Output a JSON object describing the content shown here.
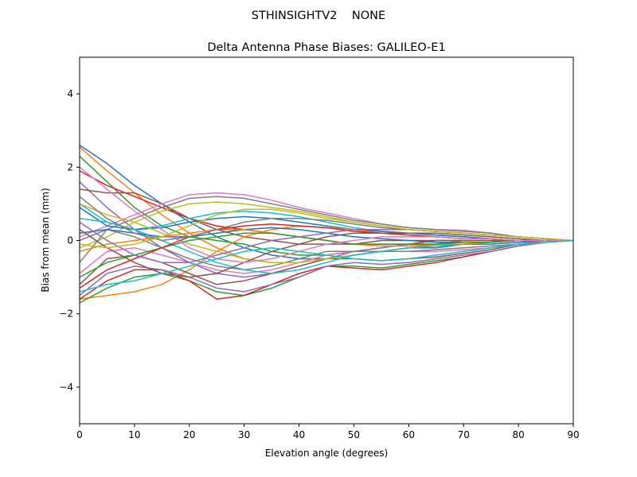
{
  "suptitle": "STHINSIGHTV2    NONE",
  "chart_data": {
    "type": "line",
    "title": "Delta Antenna Phase Biases: GALILEO-E1",
    "xlabel": "Elevation angle (degrees)",
    "ylabel": "Bias from mean (mm)",
    "xlim": [
      0,
      90
    ],
    "ylim": [
      -5,
      5
    ],
    "xticks": [
      "0",
      "10",
      "20",
      "30",
      "40",
      "50",
      "60",
      "70",
      "80",
      "90"
    ],
    "yticks": [
      "−4",
      "−2",
      "0",
      "2",
      "4"
    ],
    "grid": false,
    "legend": "none",
    "colors": [
      "#1f77b4",
      "#ff7f0e",
      "#2ca02c",
      "#d62728",
      "#9467bd",
      "#8c564b",
      "#e377c2",
      "#7f7f7f",
      "#bcbd22",
      "#17becf"
    ],
    "x": [
      0,
      5,
      10,
      15,
      20,
      25,
      30,
      35,
      40,
      45,
      50,
      55,
      60,
      65,
      70,
      75,
      80,
      85,
      90
    ],
    "series": [
      {
        "values": [
          2.6,
          2.1,
          1.5,
          1.0,
          0.5,
          0.1,
          -0.2,
          -0.4,
          -0.5,
          -0.5,
          -0.4,
          -0.3,
          -0.2,
          -0.2,
          -0.1,
          -0.1,
          -0.05,
          0,
          0
        ]
      },
      {
        "values": [
          2.55,
          1.9,
          1.3,
          0.7,
          0.2,
          -0.2,
          -0.5,
          -0.6,
          -0.6,
          -0.5,
          -0.4,
          -0.3,
          -0.2,
          -0.1,
          -0.1,
          -0.05,
          0,
          0,
          0
        ]
      },
      {
        "values": [
          2.3,
          1.6,
          0.9,
          0.4,
          0.1,
          0.0,
          -0.1,
          -0.3,
          -0.4,
          -0.4,
          -0.3,
          -0.2,
          -0.1,
          -0.1,
          0,
          0,
          0,
          0,
          0
        ]
      },
      {
        "values": [
          1.9,
          1.5,
          1.2,
          0.9,
          0.6,
          0.4,
          0.3,
          0.2,
          0.1,
          0,
          -0.1,
          -0.1,
          -0.1,
          0,
          0,
          0,
          0,
          0,
          0
        ]
      },
      {
        "values": [
          1.6,
          0.9,
          0.3,
          -0.2,
          -0.6,
          -0.9,
          -1.0,
          -0.9,
          -0.7,
          -0.5,
          -0.3,
          -0.2,
          -0.1,
          -0.1,
          0,
          0,
          0,
          0,
          0
        ]
      },
      {
        "values": [
          1.4,
          1.3,
          1.3,
          1.0,
          0.6,
          0.3,
          0.1,
          0,
          -0.1,
          -0.1,
          -0.1,
          0,
          0,
          0,
          0,
          0,
          0,
          0,
          0
        ]
      },
      {
        "values": [
          0.1,
          0.4,
          0.7,
          1.0,
          1.25,
          1.3,
          1.25,
          1.1,
          0.9,
          0.75,
          0.6,
          0.45,
          0.35,
          0.3,
          0.28,
          0.2,
          0.1,
          0.05,
          0
        ]
      },
      {
        "values": [
          0.0,
          0.3,
          0.6,
          0.9,
          1.15,
          1.2,
          1.15,
          1.0,
          0.85,
          0.7,
          0.55,
          0.45,
          0.35,
          0.3,
          0.25,
          0.2,
          0.1,
          0.05,
          0
        ]
      },
      {
        "values": [
          -0.2,
          0.1,
          0.5,
          0.8,
          1.0,
          1.05,
          1.0,
          0.9,
          0.8,
          0.65,
          0.5,
          0.4,
          0.3,
          0.25,
          0.2,
          0.15,
          0.1,
          0.05,
          0
        ]
      },
      {
        "values": [
          1.0,
          0.5,
          0.3,
          0.4,
          0.6,
          0.75,
          0.8,
          0.75,
          0.65,
          0.5,
          0.35,
          0.25,
          0.2,
          0.15,
          0.1,
          0.05,
          0,
          0,
          0
        ]
      },
      {
        "values": [
          0.9,
          0.4,
          0.3,
          0.35,
          0.5,
          0.6,
          0.65,
          0.6,
          0.5,
          0.4,
          0.3,
          0.25,
          0.2,
          0.15,
          0.1,
          0.05,
          0,
          0,
          0
        ]
      },
      {
        "values": [
          -1.6,
          -1.5,
          -1.4,
          -1.2,
          -0.8,
          -0.3,
          0.1,
          0.3,
          0.4,
          0.35,
          0.3,
          0.2,
          0.15,
          0.1,
          0.05,
          0.05,
          0,
          0,
          0
        ]
      },
      {
        "values": [
          -1.7,
          -1.3,
          -1.0,
          -0.9,
          -1.1,
          -1.4,
          -1.5,
          -1.3,
          -1.0,
          -0.7,
          -0.7,
          -0.75,
          -0.65,
          -0.55,
          -0.45,
          -0.3,
          -0.15,
          -0.05,
          0
        ]
      },
      {
        "values": [
          -1.6,
          -1.1,
          -0.8,
          -0.8,
          -1.1,
          -1.6,
          -1.5,
          -1.2,
          -0.9,
          -0.7,
          -0.75,
          -0.8,
          -0.7,
          -0.6,
          -0.45,
          -0.3,
          -0.15,
          -0.05,
          0
        ]
      },
      {
        "values": [
          -1.5,
          -0.9,
          -0.7,
          -0.8,
          -1.0,
          -1.3,
          -1.4,
          -1.2,
          -1.0,
          -0.7,
          -0.6,
          -0.65,
          -0.6,
          -0.5,
          -0.4,
          -0.3,
          -0.15,
          -0.05,
          0
        ]
      },
      {
        "values": [
          -1.2,
          -0.5,
          -0.4,
          -0.6,
          -0.9,
          -1.2,
          -1.1,
          -0.9,
          -0.7,
          -0.5,
          -0.5,
          -0.55,
          -0.5,
          -0.45,
          -0.35,
          -0.25,
          -0.1,
          -0.05,
          0
        ]
      },
      {
        "values": [
          -0.9,
          -0.3,
          -0.2,
          -0.4,
          -0.6,
          -0.8,
          -0.9,
          -0.8,
          -0.6,
          -0.4,
          -0.3,
          -0.3,
          -0.3,
          -0.3,
          -0.25,
          -0.2,
          -0.1,
          -0.05,
          0
        ]
      },
      {
        "values": [
          -0.6,
          0.3,
          0.1,
          -0.2,
          -0.5,
          -0.7,
          -0.8,
          -0.7,
          -0.5,
          -0.3,
          -0.3,
          -0.3,
          -0.3,
          -0.25,
          -0.2,
          -0.15,
          -0.1,
          0,
          0
        ]
      },
      {
        "values": [
          1.0,
          0.7,
          0.5,
          0.2,
          -0.1,
          -0.3,
          -0.5,
          -0.6,
          -0.6,
          -0.5,
          -0.4,
          -0.3,
          -0.2,
          -0.15,
          -0.1,
          -0.05,
          0,
          0,
          0
        ]
      },
      {
        "values": [
          0.6,
          0.5,
          0.3,
          0.0,
          -0.3,
          -0.6,
          -0.8,
          -0.9,
          -0.8,
          -0.6,
          -0.4,
          -0.3,
          -0.2,
          -0.15,
          -0.1,
          -0.05,
          0,
          0,
          0
        ]
      },
      {
        "values": [
          0.2,
          0.3,
          0.2,
          0.1,
          0.1,
          0.2,
          0.3,
          0.35,
          0.3,
          0.2,
          0.1,
          0.05,
          0.0,
          -0.05,
          -0.05,
          -0.05,
          0,
          0,
          0
        ]
      },
      {
        "values": [
          -0.3,
          -0.1,
          0.0,
          0.1,
          0.2,
          0.3,
          0.3,
          0.2,
          0.1,
          0.0,
          -0.1,
          -0.15,
          -0.15,
          -0.1,
          -0.1,
          -0.05,
          0,
          0,
          0
        ]
      },
      {
        "values": [
          -1.0,
          -0.6,
          -0.4,
          -0.2,
          0.0,
          0.1,
          0.2,
          0.2,
          0.1,
          0.0,
          -0.1,
          -0.1,
          -0.1,
          -0.1,
          -0.05,
          -0.05,
          0,
          0,
          0
        ]
      },
      {
        "values": [
          -1.3,
          -0.8,
          -0.5,
          -0.2,
          0.1,
          0.3,
          0.4,
          0.45,
          0.4,
          0.35,
          0.25,
          0.2,
          0.15,
          0.1,
          0.05,
          0.05,
          0,
          0,
          0
        ]
      },
      {
        "values": [
          0.5,
          0.0,
          -0.4,
          -0.6,
          -0.6,
          -0.4,
          -0.2,
          0.0,
          0.1,
          0.2,
          0.3,
          0.3,
          0.3,
          0.25,
          0.2,
          0.15,
          0.1,
          0.05,
          0
        ]
      },
      {
        "values": [
          0.3,
          -0.2,
          -0.6,
          -0.9,
          -1.0,
          -0.9,
          -0.6,
          -0.3,
          -0.1,
          0.1,
          0.2,
          0.2,
          0.2,
          0.2,
          0.15,
          0.1,
          0.05,
          0,
          0
        ]
      },
      {
        "values": [
          2.0,
          1.4,
          0.8,
          0.3,
          -0.2,
          -0.5,
          -0.6,
          -0.5,
          -0.3,
          -0.1,
          0.0,
          0.1,
          0.1,
          0.1,
          0.05,
          0.05,
          0,
          0,
          0
        ]
      },
      {
        "values": [
          1.2,
          0.6,
          0.2,
          0.0,
          0.1,
          0.3,
          0.5,
          0.6,
          0.6,
          0.55,
          0.45,
          0.35,
          0.3,
          0.25,
          0.2,
          0.15,
          0.1,
          0.05,
          0
        ]
      },
      {
        "values": [
          -0.1,
          -0.2,
          -0.1,
          0.1,
          0.4,
          0.7,
          0.85,
          0.85,
          0.75,
          0.6,
          0.5,
          0.4,
          0.3,
          0.25,
          0.2,
          0.15,
          0.1,
          0.05,
          0
        ]
      },
      {
        "values": [
          -1.4,
          -1.2,
          -1.1,
          -0.9,
          -0.7,
          -0.5,
          -0.3,
          -0.2,
          -0.3,
          -0.4,
          -0.5,
          -0.55,
          -0.5,
          -0.4,
          -0.3,
          -0.2,
          -0.1,
          -0.05,
          0
        ]
      }
    ]
  }
}
